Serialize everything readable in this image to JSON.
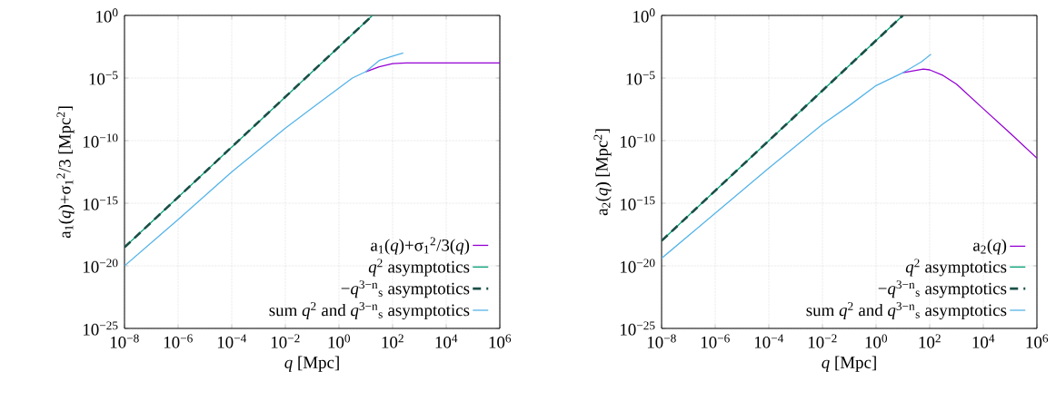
{
  "chart_data": [
    {
      "type": "line",
      "xlabel": "*q* [Mpc]",
      "ylabel": "a$_{1}$(*q*)+σ$_{1}$$^{2}$/3 [Mpc$^{2}$]",
      "log": "xy",
      "grid": true,
      "legend": "bottom right",
      "xlim": [
        1e-08,
        1000000.0
      ],
      "ylim": [
        1e-25,
        1
      ],
      "xticks": [
        {
          "value": 1e-08,
          "label": "10$^{−8}$"
        },
        {
          "value": 1e-06,
          "label": "10$^{−6}$"
        },
        {
          "value": 0.0001,
          "label": "10$^{−4}$"
        },
        {
          "value": 0.01,
          "label": "10$^{−2}$"
        },
        {
          "value": 1,
          "label": "10$^{0}$"
        },
        {
          "value": 100.0,
          "label": "10$^{2}$"
        },
        {
          "value": 10000.0,
          "label": "10$^{4}$"
        },
        {
          "value": 1000000.0,
          "label": "10$^{6}$"
        }
      ],
      "yticks": [
        {
          "value": 1e-25,
          "label": "10$^{−25}$"
        },
        {
          "value": 1e-20,
          "label": "10$^{−20}$"
        },
        {
          "value": 1e-15,
          "label": "10$^{−15}$"
        },
        {
          "value": 1e-10,
          "label": "10$^{−10}$"
        },
        {
          "value": 1e-05,
          "label": "10$^{−5}$"
        },
        {
          "value": 1,
          "label": "10$^{0}$"
        }
      ],
      "series": [
        {
          "name": "a$_{1}$(*q*)+σ$_{1}$$^{2}$/3(*q*)",
          "color": "#9400d3",
          "x": [
            10,
            31.6,
            100,
            316,
            1000,
            1000000.0
          ],
          "values": [
            3.2e-05,
            8e-05,
            0.00014,
            0.00016,
            0.00016,
            0.00016
          ]
        },
        {
          "name": "*q*$^{2}$ asymptotics",
          "color": "#009e73",
          "x": [
            1e-08,
            17.8
          ],
          "values": [
            3e-19,
            1
          ]
        },
        {
          "name": "−*q*$^{3−n}$$_{s}$ asymptotics",
          "color": "#1a4f48",
          "line_style": "dashed",
          "x": [
            1e-08,
            17.8
          ],
          "values": [
            3e-19,
            1
          ]
        },
        {
          "name": "sum *q*$^{2}$ and *q*$^{3−n}$$_{s}$ asymptotics",
          "color": "#56b4e9",
          "x": [
            1e-08,
            1e-06,
            0.0001,
            0.01,
            0.1,
            1,
            3.16,
            10,
            31.6,
            100,
            250
          ],
          "values": [
            1e-20,
            5e-17,
            3.2e-13,
            1e-09,
            4e-08,
            1.6e-06,
            1e-05,
            3.2e-05,
            0.00025,
            0.00056,
            0.001
          ]
        }
      ]
    },
    {
      "type": "line",
      "xlabel": "*q* [Mpc]",
      "ylabel": "a$_{2}$(*q*) [Mpc$^{2}$]",
      "log": "xy",
      "grid": true,
      "legend": "bottom right",
      "xlim": [
        1e-08,
        1000000.0
      ],
      "ylim": [
        1e-25,
        1
      ],
      "xticks": [
        {
          "value": 1e-08,
          "label": "10$^{−8}$"
        },
        {
          "value": 1e-06,
          "label": "10$^{−6}$"
        },
        {
          "value": 0.0001,
          "label": "10$^{−4}$"
        },
        {
          "value": 0.01,
          "label": "10$^{−2}$"
        },
        {
          "value": 1,
          "label": "10$^{0}$"
        },
        {
          "value": 100.0,
          "label": "10$^{2}$"
        },
        {
          "value": 10000.0,
          "label": "10$^{4}$"
        },
        {
          "value": 1000000.0,
          "label": "10$^{6}$"
        }
      ],
      "yticks": [
        {
          "value": 1e-25,
          "label": "10$^{−25}$"
        },
        {
          "value": 1e-20,
          "label": "10$^{−20}$"
        },
        {
          "value": 1e-15,
          "label": "10$^{−15}$"
        },
        {
          "value": 1e-10,
          "label": "10$^{−10}$"
        },
        {
          "value": 1e-05,
          "label": "10$^{−5}$"
        },
        {
          "value": 1,
          "label": "10$^{0}$"
        }
      ],
      "series": [
        {
          "name": "a$_{2}$(*q*)",
          "color": "#9400d3",
          "x": [
            10,
            58,
            100,
            316,
            1000,
            10000.0,
            100000.0,
            1000000.0
          ],
          "values": [
            2.7e-05,
            5.2e-05,
            4.5e-05,
            1.6e-05,
            3.2e-06,
            3.5e-08,
            4e-10,
            4e-12
          ]
        },
        {
          "name": "*q*$^{2}$ asymptotics",
          "color": "#009e73",
          "x": [
            1e-08,
            10
          ],
          "values": [
            1e-18,
            1
          ]
        },
        {
          "name": "−*q*$^{3−n}$$_{s}$ asymptotics",
          "color": "#1a4f48",
          "line_style": "dashed",
          "x": [
            1e-08,
            10
          ],
          "values": [
            1e-18,
            1
          ]
        },
        {
          "name": "sum *q*$^{2}$ and *q*$^{3−n}$$_{s}$ asymptotics",
          "color": "#56b4e9",
          "x": [
            1e-08,
            1e-06,
            0.0001,
            0.01,
            0.1,
            1,
            10,
            20,
            50,
            112
          ],
          "values": [
            4e-20,
            1.6e-16,
            6.3e-13,
            2e-09,
            6.3e-08,
            2.5e-06,
            2.7e-05,
            6.3e-05,
            0.0002,
            0.0008
          ]
        }
      ]
    }
  ]
}
